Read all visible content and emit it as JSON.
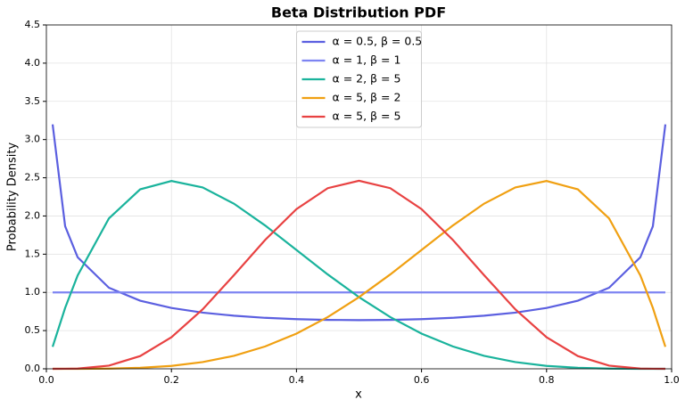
{
  "chart_data": {
    "type": "line",
    "title": "Beta Distribution PDF",
    "x_label": "x",
    "y_label": "Probability Density",
    "x": [
      0.01,
      0.03,
      0.05,
      0.1,
      0.15,
      0.2,
      0.25,
      0.3,
      0.35,
      0.4,
      0.45,
      0.5,
      0.55,
      0.6,
      0.65,
      0.7,
      0.75,
      0.8,
      0.85,
      0.9,
      0.95,
      0.97,
      0.99
    ],
    "series": [
      {
        "name": "α = 0.5, β = 0.5",
        "color": "#5b5fe0",
        "values": [
          3.199,
          1.866,
          1.46,
          1.061,
          0.891,
          0.796,
          0.735,
          0.695,
          0.667,
          0.65,
          0.64,
          0.637,
          0.64,
          0.65,
          0.667,
          0.695,
          0.735,
          0.796,
          0.891,
          1.061,
          1.46,
          1.866,
          3.199
        ]
      },
      {
        "name": "α = 1, β = 1",
        "color": "#7d84f2",
        "values": [
          1,
          1,
          1,
          1,
          1,
          1,
          1,
          1,
          1,
          1,
          1,
          1,
          1,
          1,
          1,
          1,
          1,
          1,
          1,
          1,
          1,
          1,
          1
        ]
      },
      {
        "name": "α = 2, β = 5",
        "color": "#1ab39c",
        "values": [
          0.288,
          0.797,
          1.222,
          1.968,
          2.349,
          2.458,
          2.373,
          2.161,
          1.875,
          1.555,
          1.235,
          0.938,
          0.677,
          0.461,
          0.293,
          0.17,
          0.088,
          0.038,
          0.013,
          0.003,
          0.0002,
          0,
          0
        ]
      },
      {
        "name": "α = 5, β = 2",
        "color": "#f0a012",
        "values": [
          0,
          0,
          0.0002,
          0.003,
          0.013,
          0.038,
          0.088,
          0.17,
          0.293,
          0.461,
          0.677,
          0.938,
          1.235,
          1.555,
          1.875,
          2.161,
          2.373,
          2.458,
          2.349,
          1.968,
          1.222,
          0.797,
          0.288
        ]
      },
      {
        "name": "α = 5, β = 5",
        "color": "#e84242",
        "values": [
          0,
          0.0005,
          0.0032,
          0.0413,
          0.1665,
          0.4129,
          0.7787,
          1.2253,
          1.6877,
          2.0901,
          2.364,
          2.4609,
          2.364,
          2.0901,
          1.6877,
          1.2253,
          0.7787,
          0.4129,
          0.1665,
          0.0413,
          0.0032,
          0.0005,
          0
        ]
      }
    ],
    "xlim": [
      0,
      1
    ],
    "ylim": [
      0,
      4.5
    ],
    "xticks": [
      {
        "value": 0,
        "label": "0.0"
      },
      0.2,
      0.4,
      0.6,
      0.8,
      {
        "value": 1,
        "label": "1.0"
      }
    ],
    "yticks": [
      {
        "value": 0,
        "label": "0.0"
      },
      0.5,
      {
        "value": 1,
        "label": "1.0"
      },
      1.5,
      {
        "value": 2,
        "label": "2.0"
      },
      2.5,
      {
        "value": 3,
        "label": "3.0"
      },
      3.5,
      {
        "value": 4,
        "label": "4.0"
      },
      4.5
    ],
    "grid": true,
    "legend": "upper center"
  }
}
